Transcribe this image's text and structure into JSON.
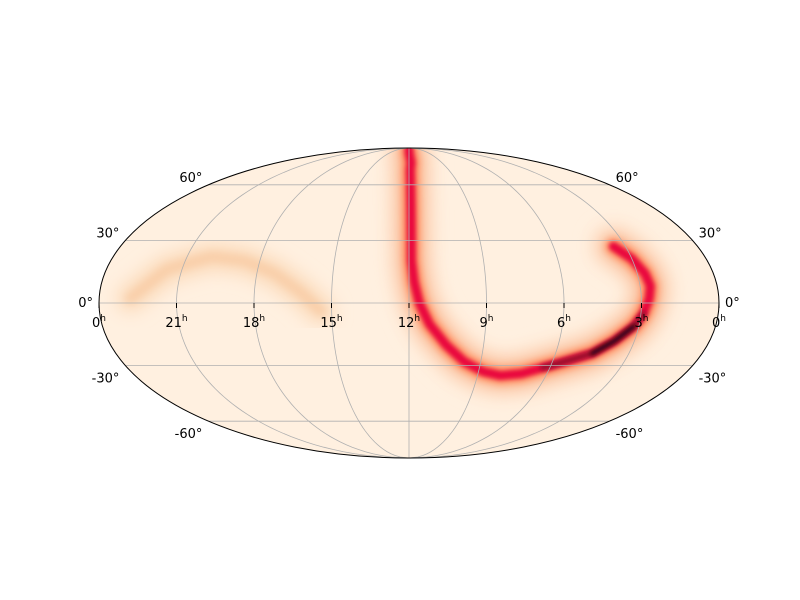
{
  "map": {
    "projection": "Mollweide",
    "type": "probability sky map",
    "colormap": "cylon",
    "grid": true,
    "colors": {
      "background_low": "#fff0e0",
      "band_mid": "#ff7f50",
      "band_high": "#e8003c",
      "band_peak": "#1a0008",
      "grid": "#b0b0b0",
      "outline": "#000000"
    }
  },
  "ra_labels": [
    {
      "hours": 0,
      "text": "0",
      "unit": "h",
      "side": "left"
    },
    {
      "hours": 21,
      "text": "21",
      "unit": "h"
    },
    {
      "hours": 18,
      "text": "18",
      "unit": "h"
    },
    {
      "hours": 15,
      "text": "15",
      "unit": "h"
    },
    {
      "hours": 12,
      "text": "12",
      "unit": "h"
    },
    {
      "hours": 9,
      "text": "9",
      "unit": "h"
    },
    {
      "hours": 6,
      "text": "6",
      "unit": "h"
    },
    {
      "hours": 3,
      "text": "3",
      "unit": "h"
    },
    {
      "hours": 0,
      "text": "0",
      "unit": "h",
      "side": "right"
    }
  ],
  "dec_labels": [
    {
      "deg": 60,
      "text": "60°"
    },
    {
      "deg": 30,
      "text": "30°"
    },
    {
      "deg": 0,
      "text": "0°"
    },
    {
      "deg": -30,
      "text": "-30°"
    },
    {
      "deg": -60,
      "text": "-60°"
    }
  ],
  "probability_band": [
    {
      "ra_h": 12.0,
      "dec": 88,
      "weight": 0.8
    },
    {
      "ra_h": 12.0,
      "dec": 85,
      "weight": 0.9
    },
    {
      "ra_h": 11.9,
      "dec": 80,
      "weight": 0.85
    },
    {
      "ra_h": 11.8,
      "dec": 75,
      "weight": 0.8
    },
    {
      "ra_h": 11.9,
      "dec": 70,
      "weight": 0.75
    },
    {
      "ra_h": 11.9,
      "dec": 60,
      "weight": 0.7
    },
    {
      "ra_h": 11.9,
      "dec": 50,
      "weight": 0.7
    },
    {
      "ra_h": 11.9,
      "dec": 40,
      "weight": 0.7
    },
    {
      "ra_h": 11.9,
      "dec": 30,
      "weight": 0.7
    },
    {
      "ra_h": 11.9,
      "dec": 20,
      "weight": 0.72
    },
    {
      "ra_h": 11.8,
      "dec": 10,
      "weight": 0.74
    },
    {
      "ra_h": 11.6,
      "dec": 0,
      "weight": 0.76
    },
    {
      "ra_h": 11.2,
      "dec": -10,
      "weight": 0.78
    },
    {
      "ra_h": 10.5,
      "dec": -20,
      "weight": 0.8
    },
    {
      "ra_h": 9.7,
      "dec": -28,
      "weight": 0.82
    },
    {
      "ra_h": 8.8,
      "dec": -33,
      "weight": 0.85
    },
    {
      "ra_h": 8.0,
      "dec": -35,
      "weight": 0.88
    },
    {
      "ra_h": 7.1,
      "dec": -34,
      "weight": 0.9
    },
    {
      "ra_h": 6.3,
      "dec": -31,
      "weight": 0.92
    },
    {
      "ra_h": 5.5,
      "dec": -28,
      "weight": 0.95
    },
    {
      "ra_h": 4.5,
      "dec": -24,
      "weight": 1.0
    },
    {
      "ra_h": 3.8,
      "dec": -18,
      "weight": 1.0
    },
    {
      "ra_h": 3.2,
      "dec": -11,
      "weight": 0.98
    },
    {
      "ra_h": 2.9,
      "dec": -5,
      "weight": 0.95
    },
    {
      "ra_h": 2.7,
      "dec": 2,
      "weight": 0.85
    },
    {
      "ra_h": 2.6,
      "dec": 8,
      "weight": 0.75
    },
    {
      "ra_h": 2.7,
      "dec": 14,
      "weight": 0.55
    },
    {
      "ra_h": 3.0,
      "dec": 21,
      "weight": 0.4
    },
    {
      "ra_h": 3.5,
      "dec": 27,
      "weight": 0.25
    }
  ],
  "faint_band": [
    {
      "ra_h": 22.8,
      "dec": 2,
      "weight": 0.25
    },
    {
      "ra_h": 21.6,
      "dec": 16,
      "weight": 0.3
    },
    {
      "ra_h": 20.0,
      "dec": 22,
      "weight": 0.3
    },
    {
      "ra_h": 18.6,
      "dec": 20,
      "weight": 0.28
    },
    {
      "ra_h": 17.3,
      "dec": 14,
      "weight": 0.25
    },
    {
      "ra_h": 16.2,
      "dec": 5,
      "weight": 0.22
    },
    {
      "ra_h": 15.4,
      "dec": -4,
      "weight": 0.18
    }
  ]
}
